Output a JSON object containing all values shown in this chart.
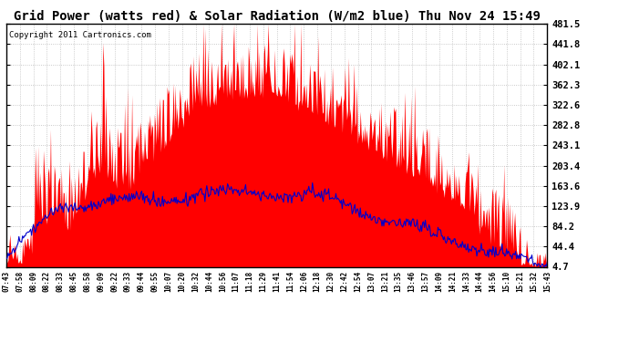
{
  "title": "Grid Power (watts red) & Solar Radiation (W/m2 blue) Thu Nov 24 15:49",
  "copyright": "Copyright 2011 Cartronics.com",
  "yticks": [
    4.7,
    44.4,
    84.2,
    123.9,
    163.6,
    203.4,
    243.1,
    282.8,
    322.6,
    362.3,
    402.1,
    441.8,
    481.5
  ],
  "ymin": 4.7,
  "ymax": 481.5,
  "xtick_labels": [
    "07:43",
    "07:58",
    "08:09",
    "08:22",
    "08:33",
    "08:45",
    "08:58",
    "09:09",
    "09:22",
    "09:33",
    "09:44",
    "09:55",
    "10:07",
    "10:20",
    "10:32",
    "10:44",
    "10:56",
    "11:07",
    "11:18",
    "11:29",
    "11:41",
    "11:54",
    "12:06",
    "12:18",
    "12:30",
    "12:42",
    "12:54",
    "13:07",
    "13:21",
    "13:35",
    "13:46",
    "13:57",
    "14:09",
    "14:21",
    "14:33",
    "14:44",
    "14:56",
    "15:10",
    "15:21",
    "15:32",
    "15:43"
  ],
  "red_color": "#FF0000",
  "blue_color": "#0000CC",
  "bg_color": "#FFFFFF",
  "grid_color": "#BBBBBB",
  "title_fontsize": 11,
  "copyright_fontsize": 7
}
